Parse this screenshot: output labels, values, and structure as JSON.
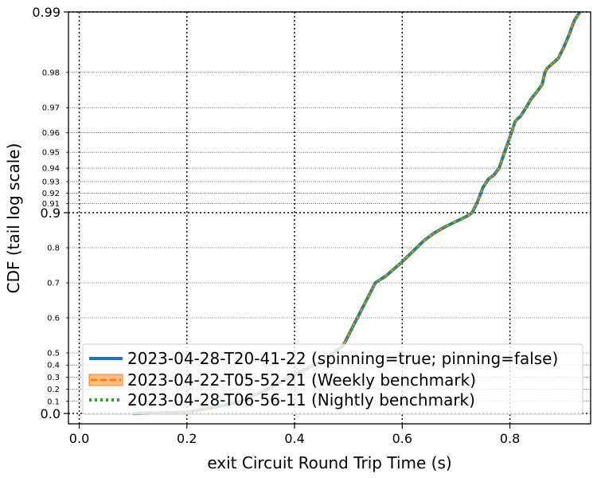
{
  "chart_data": {
    "type": "line",
    "xlabel": "exit Circuit Round Trip Time (s)",
    "ylabel": "CDF (tail log scale)",
    "xlim": [
      -0.02,
      0.95
    ],
    "x_ticks": [
      0.0,
      0.2,
      0.4,
      0.6,
      0.8
    ],
    "x_tick_labels": [
      "0.0",
      "0.2",
      "0.4",
      "0.6",
      "0.8"
    ],
    "y_scale": "tail log (logit-like)",
    "y_major_ticks": [
      0.0,
      0.9,
      0.99
    ],
    "y_major_tick_labels": [
      "0.0",
      "0.9",
      "0.99"
    ],
    "y_minor_ticks": [
      0.1,
      0.2,
      0.3,
      0.4,
      0.5,
      0.6,
      0.7,
      0.8,
      0.91,
      0.92,
      0.93,
      0.94,
      0.95,
      0.96,
      0.97,
      0.98
    ],
    "y_minor_tick_labels": [
      "0.1",
      "0.2",
      "0.3",
      "0.4",
      "0.5",
      "0.6",
      "0.7",
      "0.8",
      "0.91",
      "0.92",
      "0.93",
      "0.94",
      "0.95",
      "0.96",
      "0.97",
      "0.98"
    ],
    "grid": true,
    "legend_position": "lower-right",
    "series": [
      {
        "name": "2023-04-28-T20-41-22 (spinning=true; pinning=false)",
        "color": "#1f77b4",
        "style": "solid",
        "x": [
          0.1,
          0.15,
          0.2,
          0.25,
          0.3,
          0.35,
          0.4,
          0.45,
          0.49,
          0.51,
          0.53,
          0.55,
          0.57,
          0.6,
          0.62,
          0.64,
          0.66,
          0.68,
          0.7,
          0.72,
          0.73,
          0.74,
          0.75,
          0.76,
          0.77,
          0.78,
          0.79,
          0.8,
          0.81,
          0.82,
          0.83,
          0.84,
          0.85,
          0.86,
          0.865,
          0.87,
          0.88,
          0.89,
          0.9,
          0.91,
          0.92,
          0.93
        ],
        "y": [
          0.0,
          0.005,
          0.01,
          0.05,
          0.1,
          0.2,
          0.32,
          0.43,
          0.52,
          0.58,
          0.64,
          0.7,
          0.72,
          0.76,
          0.79,
          0.82,
          0.843,
          0.86,
          0.875,
          0.89,
          0.9,
          0.912,
          0.925,
          0.932,
          0.935,
          0.94,
          0.95,
          0.958,
          0.965,
          0.967,
          0.97,
          0.973,
          0.975,
          0.977,
          0.98,
          0.981,
          0.982,
          0.983,
          0.985,
          0.987,
          0.989,
          0.99
        ]
      },
      {
        "name": "2023-04-22-T05-52-21 (Weekly benchmark)",
        "color": "#ff7f0e",
        "style": "dashed-band",
        "x": [
          0.1,
          0.15,
          0.2,
          0.25,
          0.3,
          0.35,
          0.4,
          0.45,
          0.49,
          0.51,
          0.53,
          0.55,
          0.57,
          0.6,
          0.62,
          0.64,
          0.66,
          0.68,
          0.7,
          0.72,
          0.73,
          0.74,
          0.75,
          0.76,
          0.77,
          0.78,
          0.79,
          0.8,
          0.81,
          0.82,
          0.83,
          0.84,
          0.85,
          0.86,
          0.865,
          0.87,
          0.88,
          0.89,
          0.9,
          0.91,
          0.92,
          0.93
        ],
        "y": [
          0.0,
          0.005,
          0.01,
          0.05,
          0.1,
          0.2,
          0.32,
          0.43,
          0.52,
          0.58,
          0.64,
          0.7,
          0.72,
          0.76,
          0.79,
          0.82,
          0.843,
          0.86,
          0.875,
          0.89,
          0.9,
          0.912,
          0.925,
          0.932,
          0.935,
          0.94,
          0.95,
          0.958,
          0.965,
          0.967,
          0.97,
          0.973,
          0.975,
          0.977,
          0.98,
          0.981,
          0.982,
          0.983,
          0.985,
          0.987,
          0.989,
          0.99
        ]
      },
      {
        "name": "2023-04-28-T06-56-11 (Nightly benchmark)",
        "color": "#2ca02c",
        "style": "dotted",
        "x": [
          0.1,
          0.15,
          0.2,
          0.25,
          0.3,
          0.35,
          0.4,
          0.45,
          0.49,
          0.51,
          0.53,
          0.55,
          0.57,
          0.6,
          0.62,
          0.64,
          0.66,
          0.68,
          0.7,
          0.72,
          0.73,
          0.74,
          0.75,
          0.76,
          0.77,
          0.78,
          0.79,
          0.8,
          0.81,
          0.82,
          0.83,
          0.84,
          0.85,
          0.86,
          0.865,
          0.87,
          0.88,
          0.89,
          0.9,
          0.91,
          0.92,
          0.93
        ],
        "y": [
          0.0,
          0.005,
          0.01,
          0.05,
          0.1,
          0.2,
          0.32,
          0.43,
          0.52,
          0.58,
          0.64,
          0.7,
          0.72,
          0.76,
          0.79,
          0.82,
          0.843,
          0.86,
          0.875,
          0.89,
          0.9,
          0.912,
          0.925,
          0.932,
          0.935,
          0.94,
          0.95,
          0.958,
          0.965,
          0.967,
          0.97,
          0.973,
          0.975,
          0.977,
          0.98,
          0.981,
          0.982,
          0.983,
          0.985,
          0.987,
          0.989,
          0.99
        ]
      }
    ]
  }
}
